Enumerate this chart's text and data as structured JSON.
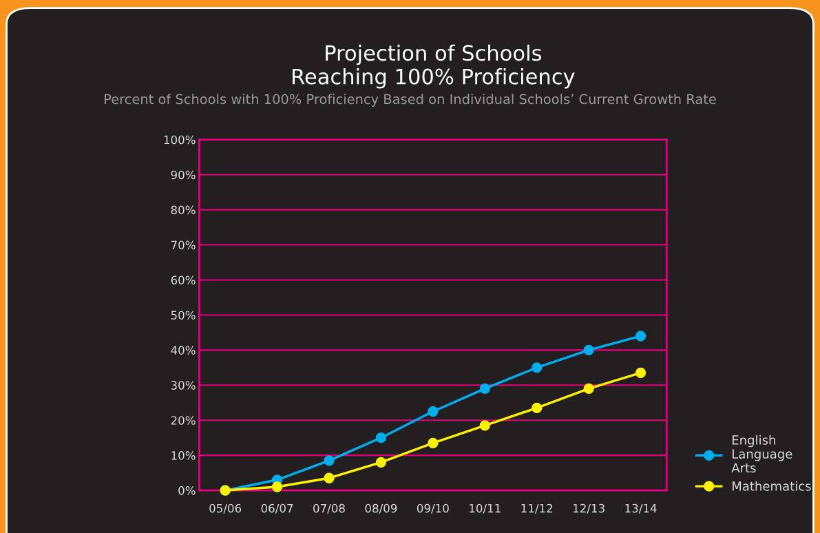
{
  "chart_data": {
    "type": "line",
    "title": "Projection of Schools\nReaching 100% Proficiency",
    "subtitle": "Percent of Schools with 100% Proficiency Based on Individual Schools’ Current Growth Rate",
    "categories": [
      "05/06",
      "06/07",
      "07/08",
      "08/09",
      "09/10",
      "10/11",
      "11/12",
      "12/13",
      "13/14"
    ],
    "series": [
      {
        "name": "English\nLanguage\nArts",
        "color": "#00aeef",
        "values": [
          0,
          3,
          8.5,
          15,
          22.5,
          29,
          35,
          40,
          44
        ]
      },
      {
        "name": "Mathematics",
        "color": "#fff200",
        "values": [
          0,
          1,
          3.5,
          8,
          13.5,
          18.5,
          23.5,
          29,
          33.5
        ]
      }
    ],
    "ylim": [
      0,
      100
    ],
    "yticks": [
      {
        "value": 0,
        "label": "0%"
      },
      {
        "value": 10,
        "label": "10%"
      },
      {
        "value": 20,
        "label": "20%"
      },
      {
        "value": 30,
        "label": "30%"
      },
      {
        "value": 40,
        "label": "40%"
      },
      {
        "value": 50,
        "label": "50%"
      },
      {
        "value": 60,
        "label": "60%"
      },
      {
        "value": 70,
        "label": "70%"
      },
      {
        "value": 80,
        "label": "80%"
      },
      {
        "value": 90,
        "label": "90%"
      },
      {
        "value": 100,
        "label": "100%"
      }
    ],
    "grid": "y",
    "legend": "bottom right",
    "marker": "circle",
    "line_style": "solid"
  }
}
